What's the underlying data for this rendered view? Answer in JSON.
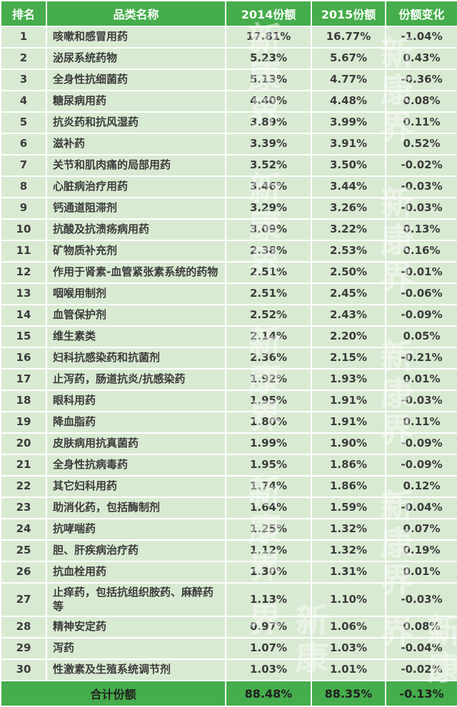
{
  "colors": {
    "header_bg": "#45ad4c",
    "header_text": "#ffffff",
    "row_bg": "#d9ead2",
    "body_text": "#3c3c3c",
    "footer_text": "#1f1f1f",
    "grid": "#ffffff"
  },
  "watermark": {
    "text": "新康界"
  },
  "chart_data": {
    "type": "table",
    "columns": [
      "排名",
      "品类名称",
      "2014份额",
      "2015份额",
      "份额变化"
    ],
    "rows": [
      [
        "1",
        "咳嗽和感冒用药",
        "17.81%",
        "16.77%",
        "-1.04%"
      ],
      [
        "2",
        "泌尿系统药物",
        "5.23%",
        "5.67%",
        "0.43%"
      ],
      [
        "3",
        "全身性抗细菌药",
        "5.13%",
        "4.77%",
        "-0.36%"
      ],
      [
        "4",
        "糖尿病用药",
        "4.40%",
        "4.48%",
        "0.08%"
      ],
      [
        "5",
        "抗炎药和抗风湿药",
        "3.89%",
        "3.99%",
        "0.11%"
      ],
      [
        "6",
        "滋补药",
        "3.39%",
        "3.91%",
        "0.52%"
      ],
      [
        "7",
        "关节和肌肉痛的局部用药",
        "3.52%",
        "3.50%",
        "-0.02%"
      ],
      [
        "8",
        "心脏病治疗用药",
        "3.46%",
        "3.44%",
        "-0.03%"
      ],
      [
        "9",
        "钙通道阻滞剂",
        "3.29%",
        "3.26%",
        "-0.03%"
      ],
      [
        "10",
        "抗酸及抗溃疡病用药",
        "3.09%",
        "3.22%",
        "0.13%"
      ],
      [
        "11",
        "矿物质补充剂",
        "2.38%",
        "2.53%",
        "0.16%"
      ],
      [
        "12",
        "作用于肾素-血管紧张素系统的药物",
        "2.51%",
        "2.50%",
        "-0.01%"
      ],
      [
        "13",
        "咽喉用制剂",
        "2.51%",
        "2.45%",
        "-0.06%"
      ],
      [
        "14",
        "血管保护剂",
        "2.52%",
        "2.43%",
        "-0.09%"
      ],
      [
        "15",
        "维生素类",
        "2.14%",
        "2.20%",
        "0.05%"
      ],
      [
        "16",
        "妇科抗感染药和抗菌剂",
        "2.36%",
        "2.15%",
        "-0.21%"
      ],
      [
        "17",
        "止泻药，肠道抗炎/抗感染药",
        "1.92%",
        "1.93%",
        "0.01%"
      ],
      [
        "18",
        "眼科用药",
        "1.95%",
        "1.91%",
        "-0.03%"
      ],
      [
        "19",
        "降血脂药",
        "1.80%",
        "1.91%",
        "0.11%"
      ],
      [
        "20",
        "皮肤病用抗真菌药",
        "1.99%",
        "1.90%",
        "-0.09%"
      ],
      [
        "21",
        "全身性抗病毒药",
        "1.95%",
        "1.86%",
        "-0.09%"
      ],
      [
        "22",
        "其它妇科用药",
        "1.74%",
        "1.86%",
        "0.12%"
      ],
      [
        "23",
        "助消化药，包括酶制剂",
        "1.64%",
        "1.59%",
        "-0.04%"
      ],
      [
        "24",
        "抗哮喘药",
        "1.25%",
        "1.32%",
        "0.07%"
      ],
      [
        "25",
        "胆、肝疾病治疗药",
        "1.12%",
        "1.32%",
        "0.19%"
      ],
      [
        "26",
        "抗血栓用药",
        "1.30%",
        "1.31%",
        "0.01%"
      ],
      [
        "27",
        "止痒药，包括抗组织胺药、麻醉药等",
        "1.13%",
        "1.10%",
        "-0.03%"
      ],
      [
        "28",
        "精神安定药",
        "0.97%",
        "1.06%",
        "0.08%"
      ],
      [
        "29",
        "泻药",
        "1.07%",
        "1.03%",
        "-0.04%"
      ],
      [
        "30",
        "性激素及生殖系统调节剂",
        "1.03%",
        "1.01%",
        "-0.02%"
      ]
    ],
    "footer": [
      "合计份额",
      "88.48%",
      "88.35%",
      "-0.13%"
    ]
  }
}
